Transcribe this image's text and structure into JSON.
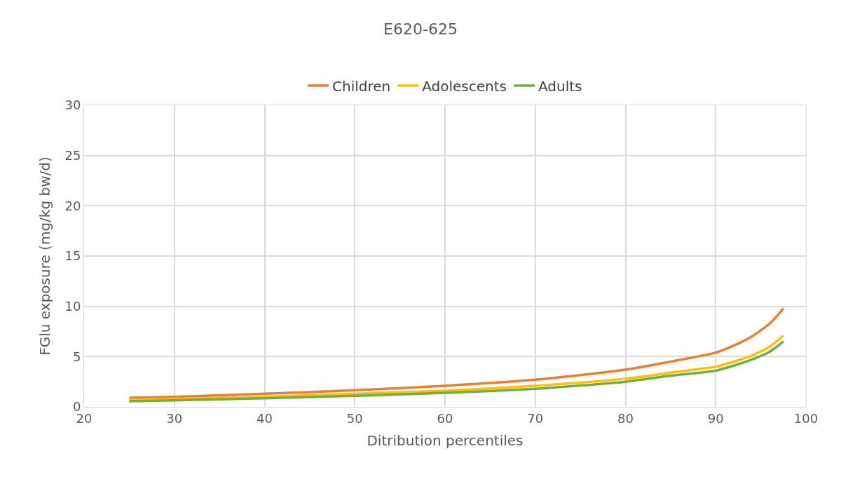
{
  "chart_data": {
    "type": "line",
    "title": "E620-625",
    "xlabel": "Ditribution percentiles",
    "ylabel": "FGlu exposure (mg/kg bw/d)",
    "x": [
      25,
      30,
      40,
      50,
      60,
      70,
      80,
      85,
      90,
      92,
      94,
      96,
      97.5
    ],
    "series": [
      {
        "name": "Children",
        "color": "#ed7d31",
        "values": [
          0.9,
          1.0,
          1.3,
          1.65,
          2.1,
          2.7,
          3.7,
          4.5,
          5.4,
          6.1,
          7.0,
          8.3,
          9.8
        ]
      },
      {
        "name": "Adolescents",
        "color": "#ffc000",
        "values": [
          0.7,
          0.8,
          1.0,
          1.3,
          1.6,
          2.1,
          2.8,
          3.4,
          4.0,
          4.5,
          5.1,
          6.0,
          7.1
        ]
      },
      {
        "name": "Adults",
        "color": "#70ad47",
        "values": [
          0.55,
          0.65,
          0.85,
          1.1,
          1.4,
          1.8,
          2.5,
          3.1,
          3.6,
          4.1,
          4.7,
          5.5,
          6.5
        ]
      }
    ],
    "xlim": [
      20,
      100
    ],
    "xticks": [
      20,
      30,
      40,
      50,
      60,
      70,
      80,
      90,
      100
    ],
    "ylim": [
      0,
      30
    ],
    "yticks": [
      0,
      5,
      10,
      15,
      20,
      25,
      30
    ],
    "grid": true,
    "legend": "top",
    "marker": "none",
    "line_style": "solid"
  }
}
